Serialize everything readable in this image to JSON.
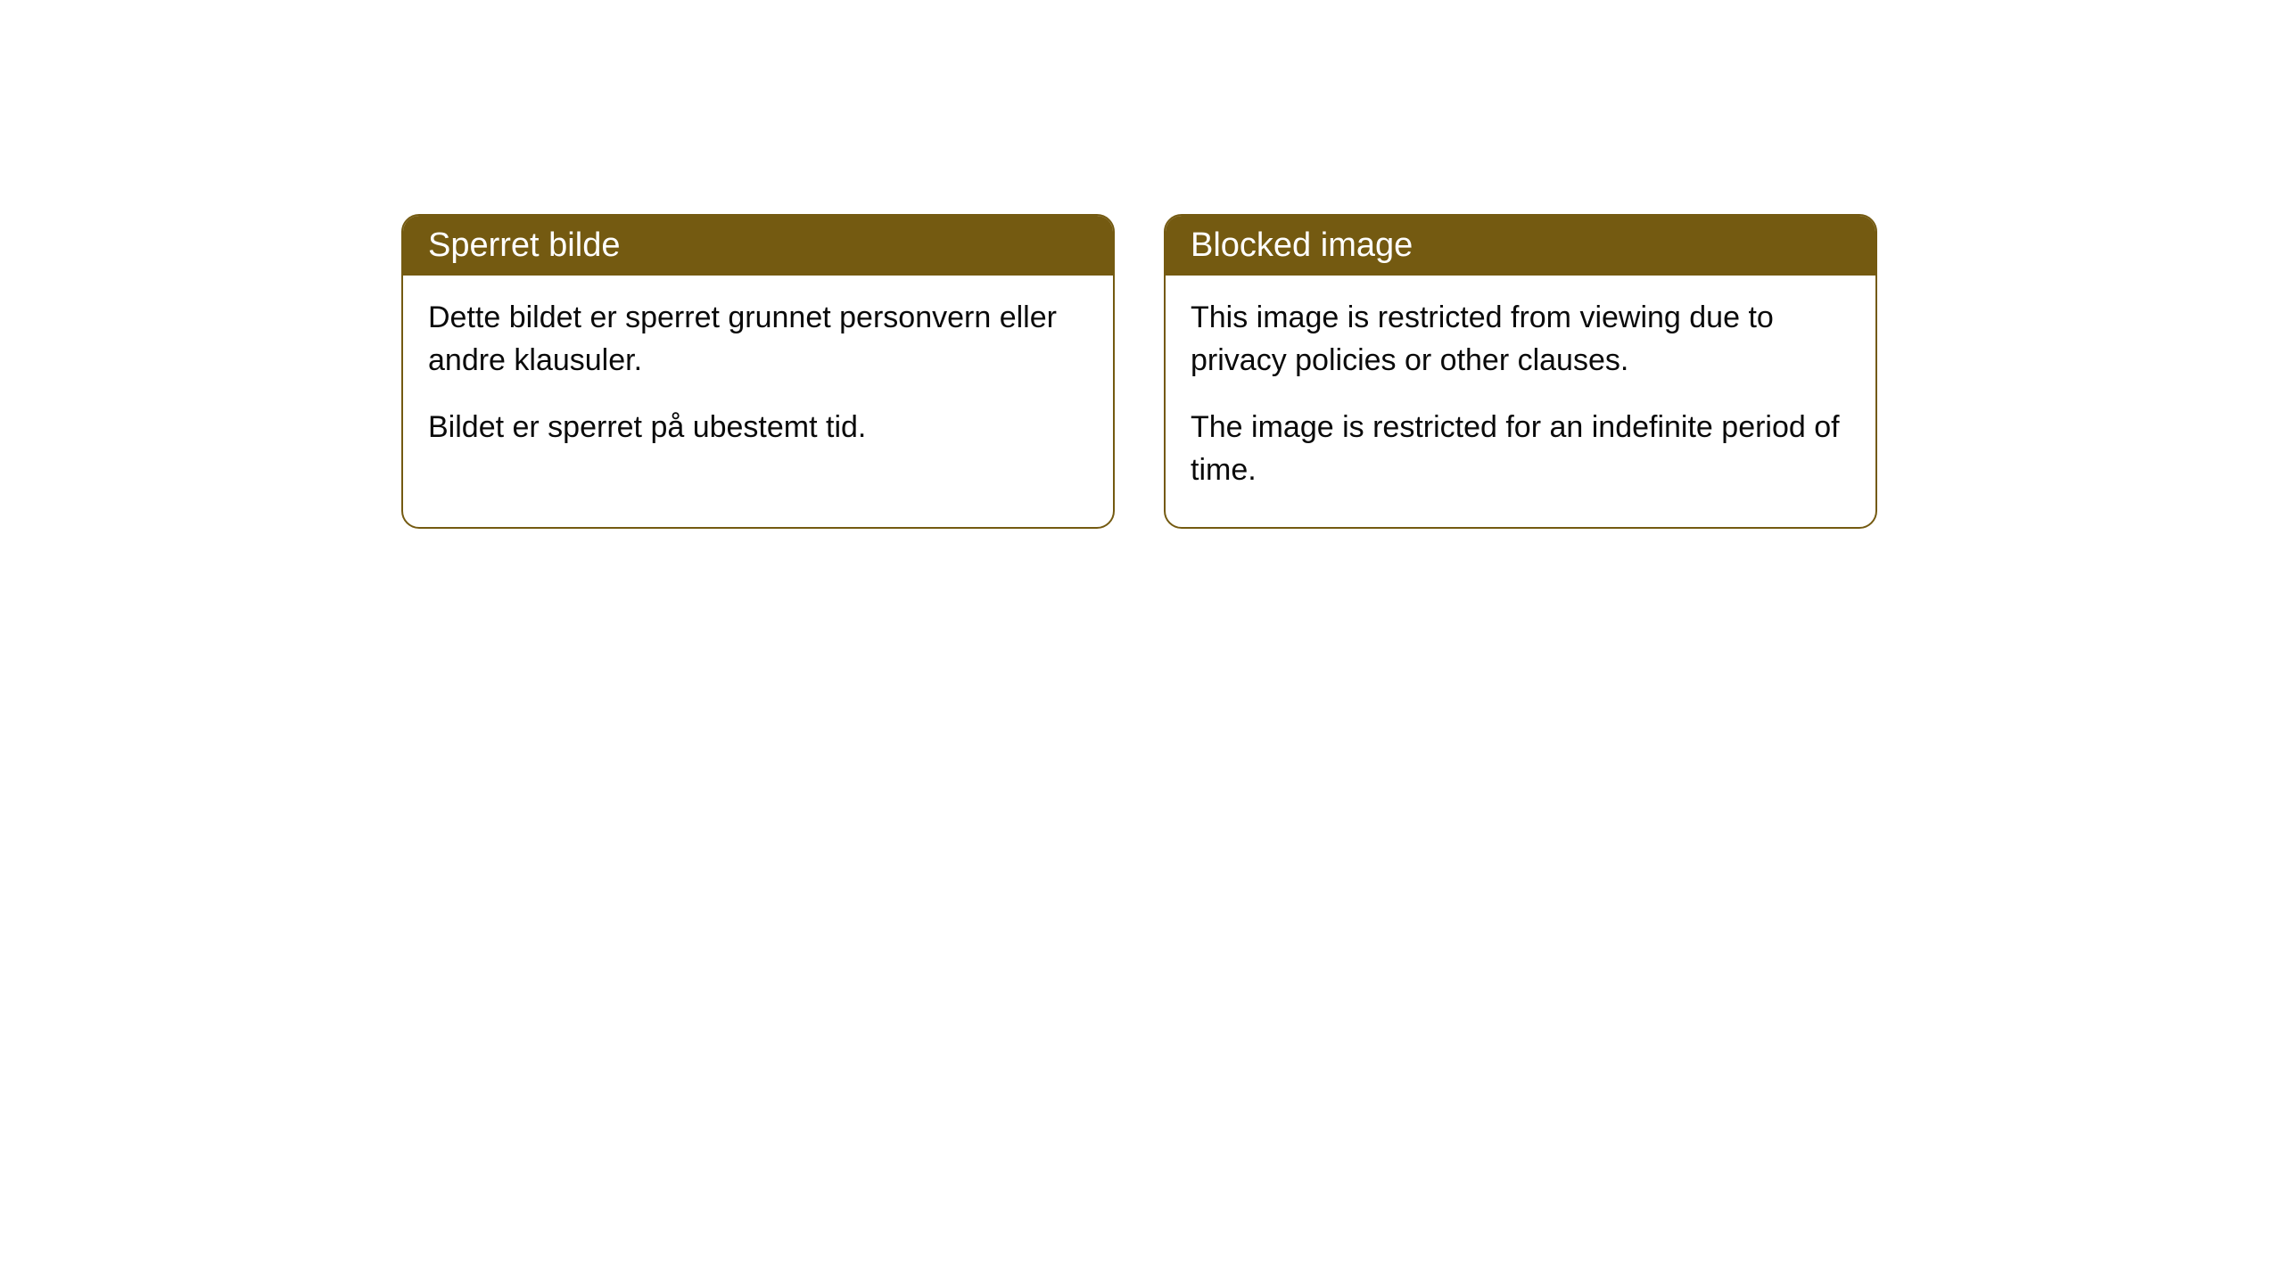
{
  "cards": [
    {
      "title": "Sperret bilde",
      "paragraph1": "Dette bildet er sperret grunnet personvern eller andre klausuler.",
      "paragraph2": "Bildet er sperret på ubestemt tid."
    },
    {
      "title": "Blocked image",
      "paragraph1": "This image is restricted from viewing due to privacy policies or other clauses.",
      "paragraph2": "The image is restricted for an indefinite period of time."
    }
  ],
  "styling": {
    "header_bg": "#745a11",
    "header_text_color": "#ffffff",
    "border_color": "#745a11",
    "body_bg": "#ffffff",
    "body_text_color": "#0a0a0a",
    "border_radius": 20,
    "header_fontsize": 38,
    "body_fontsize": 34
  }
}
